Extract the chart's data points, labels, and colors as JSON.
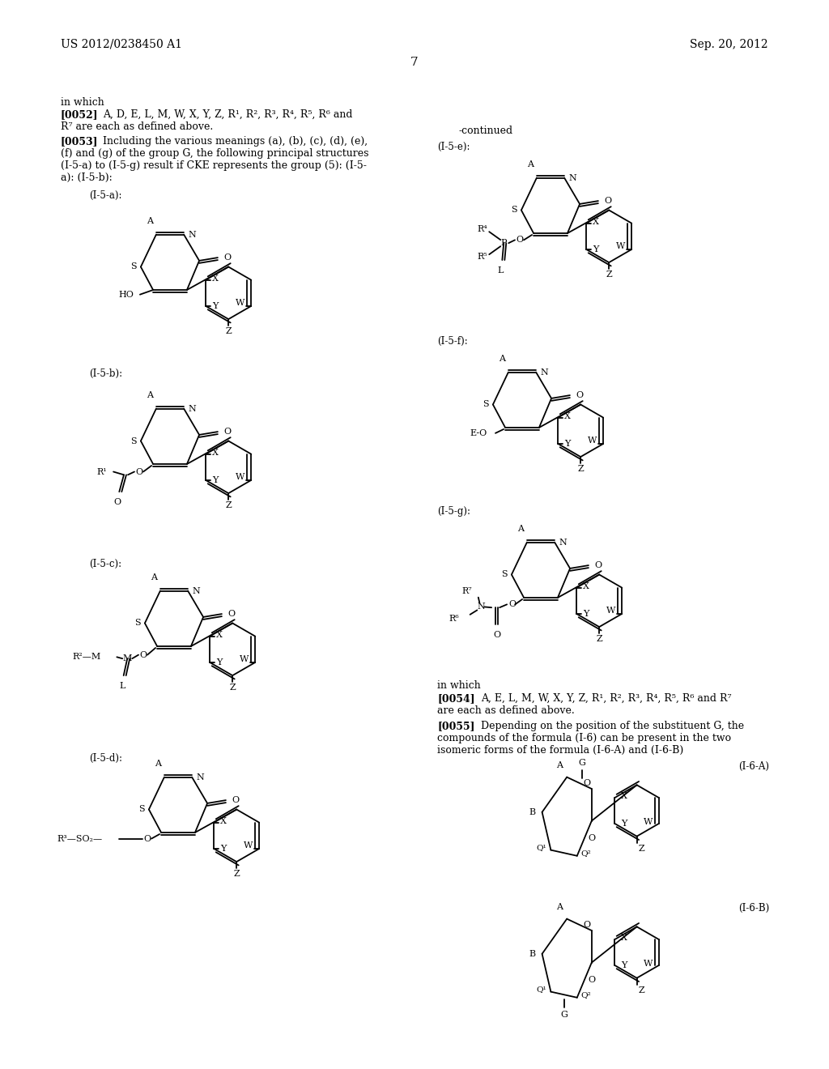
{
  "page_header_left": "US 2012/0238450 A1",
  "page_header_right": "Sep. 20, 2012",
  "page_number": "7",
  "bg": "#ffffff",
  "fg": "#000000",
  "continued_text": "-continued",
  "in_which_left": "in which",
  "para_0052": "[0052]   A, D, E, L, M, W, X, Y, Z, R¹, R², R³, R⁴, R⁵, R⁶ and\nR⁷ are each as defined above.",
  "para_0053": "[0053]   Including the various meanings (a), (b), (c), (d), (e),\n(f) and (g) of the group G, the following principal structures\n(I-5-a) to (I-5-g) result if CKE represents the group (5): (I-5-\na): (I-5-b):",
  "in_which_right": "in which",
  "para_0054": "[0054]   A, E, L, M, W, X, Y, Z, R¹, R², R³, R⁴, R⁵, R⁶ and R⁷\nare each as defined above.",
  "para_0055": "[0055]   Depending on the position of the substituent G, the\ncompounds of the formula (I-6) can be present in the two\nisomeric forms of the formula (I-6-A) and (I-6-B)",
  "label_I5a": "(I-5-a):",
  "label_I5b": "(I-5-b):",
  "label_I5c": "(I-5-c):",
  "label_I5d": "(I-5-d):",
  "label_I5e": "(I-5-e):",
  "label_I5f": "(I-5-f):",
  "label_I5g": "(I-5-g):",
  "label_I6A": "(I-6-A)",
  "label_I6B": "(I-6-B)"
}
